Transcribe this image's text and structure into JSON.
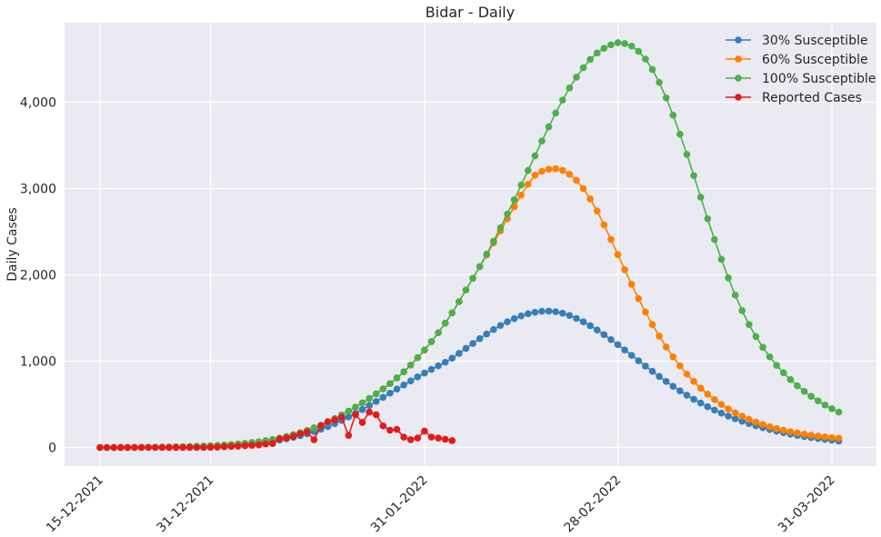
{
  "chart_data": {
    "type": "line",
    "title": "Bidar - Daily",
    "xlabel": "",
    "ylabel": "Daily Cases",
    "x_start": "15-12-2021",
    "x_end": "31-03-2022",
    "x_tick_labels": [
      "15-12-2021",
      "31-12-2021",
      "31-01-2022",
      "28-02-2022",
      "31-03-2022"
    ],
    "y_tick_labels": [
      "0",
      "1,000",
      "2,000",
      "3,000",
      "4,000"
    ],
    "ylim": [
      -220,
      4880
    ],
    "grid": true,
    "legend_position": "top-right",
    "series": [
      {
        "name": "30% Susceptible",
        "color": "#377eb8",
        "peak_date": "13-02-2022",
        "peak_value": 1580,
        "values": [
          0,
          0,
          0,
          1,
          1,
          1,
          2,
          2,
          3,
          4,
          5,
          6,
          8,
          9,
          11,
          13,
          16,
          19,
          23,
          27,
          32,
          38,
          45,
          53,
          62,
          73,
          86,
          101,
          118,
          137,
          159,
          184,
          212,
          243,
          277,
          314,
          354,
          396,
          440,
          486,
          533,
          581,
          629,
          677,
          725,
          772,
          818,
          862,
          905,
          947,
          987,
          1035,
          1090,
          1148,
          1205,
          1261,
          1315,
          1367,
          1414,
          1456,
          1493,
          1524,
          1549,
          1567,
          1578,
          1580,
          1573,
          1556,
          1530,
          1496,
          1456,
          1411,
          1361,
          1307,
          1250,
          1191,
          1130,
          1068,
          1005,
          943,
          882,
          823,
          765,
          709,
          656,
          606,
          559,
          515,
          473,
          434,
          398,
          364,
          333,
          304,
          277,
          252,
          229,
          208,
          189,
          171,
          155,
          140,
          127,
          115,
          104,
          94,
          85,
          75
        ]
      },
      {
        "name": "60% Susceptible",
        "color": "#ff7f00",
        "peak_date": "20-02-2022",
        "peak_value": 3230,
        "values": [
          0,
          0,
          1,
          1,
          1,
          2,
          2,
          3,
          4,
          5,
          6,
          8,
          9,
          11,
          14,
          16,
          20,
          24,
          28,
          34,
          40,
          48,
          57,
          67,
          79,
          93,
          109,
          127,
          148,
          171,
          197,
          227,
          260,
          296,
          335,
          377,
          421,
          468,
          517,
          568,
          622,
          679,
          740,
          806,
          877,
          955,
          1040,
          1130,
          1227,
          1330,
          1440,
          1560,
          1690,
          1825,
          1960,
          2095,
          2230,
          2370,
          2510,
          2650,
          2790,
          2925,
          3050,
          3155,
          3200,
          3225,
          3230,
          3210,
          3165,
          3095,
          3000,
          2880,
          2740,
          2580,
          2410,
          2235,
          2060,
          1890,
          1725,
          1570,
          1425,
          1290,
          1165,
          1050,
          945,
          850,
          765,
          688,
          618,
          555,
          498,
          447,
          402,
          362,
          326,
          294,
          266,
          241,
          219,
          200,
          183,
          168,
          155,
          143,
          132,
          123,
          115,
          108
        ]
      },
      {
        "name": "100% Susceptible",
        "color": "#4daf4a",
        "peak_date": "27-02-2022",
        "peak_value": 4690,
        "values": [
          0,
          0,
          1,
          1,
          1,
          2,
          2,
          3,
          4,
          5,
          6,
          8,
          9,
          11,
          14,
          16,
          20,
          24,
          28,
          34,
          40,
          48,
          57,
          67,
          79,
          93,
          109,
          127,
          148,
          171,
          197,
          227,
          260,
          296,
          335,
          377,
          421,
          468,
          517,
          568,
          622,
          679,
          740,
          806,
          877,
          955,
          1040,
          1130,
          1227,
          1330,
          1440,
          1560,
          1690,
          1825,
          1960,
          2095,
          2240,
          2390,
          2545,
          2705,
          2870,
          3040,
          3210,
          3380,
          3550,
          3715,
          3875,
          4025,
          4165,
          4290,
          4400,
          4495,
          4570,
          4625,
          4665,
          4690,
          4680,
          4650,
          4590,
          4500,
          4380,
          4230,
          4050,
          3850,
          3630,
          3395,
          3150,
          2900,
          2650,
          2410,
          2180,
          1965,
          1765,
          1585,
          1425,
          1285,
          1160,
          1050,
          952,
          865,
          786,
          715,
          651,
          593,
          540,
          492,
          449,
          410
        ]
      },
      {
        "name": "Reported Cases",
        "color": "#e41a1c",
        "values": [
          0,
          0,
          0,
          0,
          0,
          0,
          0,
          0,
          0,
          0,
          0,
          0,
          0,
          0,
          0,
          0,
          2,
          5,
          8,
          12,
          15,
          20,
          25,
          30,
          40,
          45,
          100,
          110,
          130,
          160,
          180,
          90,
          250,
          300,
          320,
          350,
          140,
          380,
          290,
          410,
          380,
          250,
          200,
          210,
          120,
          90,
          110,
          190,
          120,
          110,
          95,
          80
        ]
      }
    ]
  }
}
